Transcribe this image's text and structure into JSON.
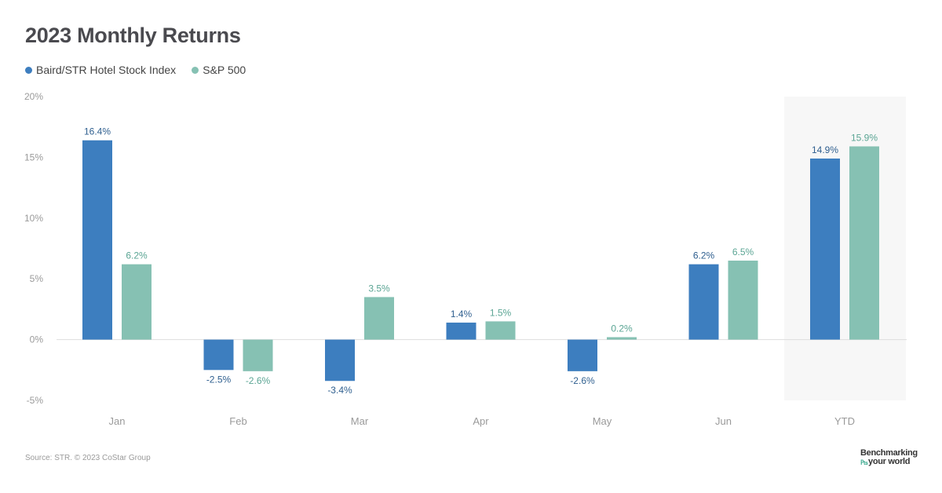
{
  "title": "2023 Monthly Returns",
  "legend": [
    {
      "label": "Baird/STR Hotel Stock Index",
      "color": "#3d7ebf"
    },
    {
      "label": "S&P 500",
      "color": "#86c1b3"
    }
  ],
  "footer": {
    "source": "Source: STR. © 2023 CoStar Group",
    "brand_line1": "Benchmarking",
    "brand_line2": "your world"
  },
  "chart_data": {
    "type": "bar",
    "categories": [
      "Jan",
      "Feb",
      "Mar",
      "Apr",
      "May",
      "Jun",
      "YTD"
    ],
    "series": [
      {
        "name": "Baird/STR Hotel Stock Index",
        "values": [
          16.4,
          -2.5,
          -3.4,
          1.4,
          -2.6,
          6.2,
          14.9
        ],
        "color": "#3d7ebf",
        "label_color": "#2f5f8f"
      },
      {
        "name": "S&P 500",
        "values": [
          6.2,
          -2.6,
          3.5,
          1.5,
          0.2,
          6.5,
          15.9
        ],
        "color": "#86c1b3",
        "label_color": "#5ba594"
      }
    ],
    "data_labels": [
      [
        "16.4%",
        "-2.5%",
        "-3.4%",
        "1.4%",
        "-2.6%",
        "6.2%",
        "14.9%"
      ],
      [
        "6.2%",
        "-2.6%",
        "3.5%",
        "1.5%",
        "0.2%",
        "6.5%",
        "15.9%"
      ]
    ],
    "y_ticks": [
      20,
      15,
      10,
      5,
      0,
      -5
    ],
    "y_tick_labels": [
      "20%",
      "15%",
      "10%",
      "5%",
      "0%",
      "-5%"
    ],
    "ylim": [
      -5,
      20
    ],
    "highlight_category": "YTD",
    "xlabel": "",
    "ylabel": ""
  }
}
